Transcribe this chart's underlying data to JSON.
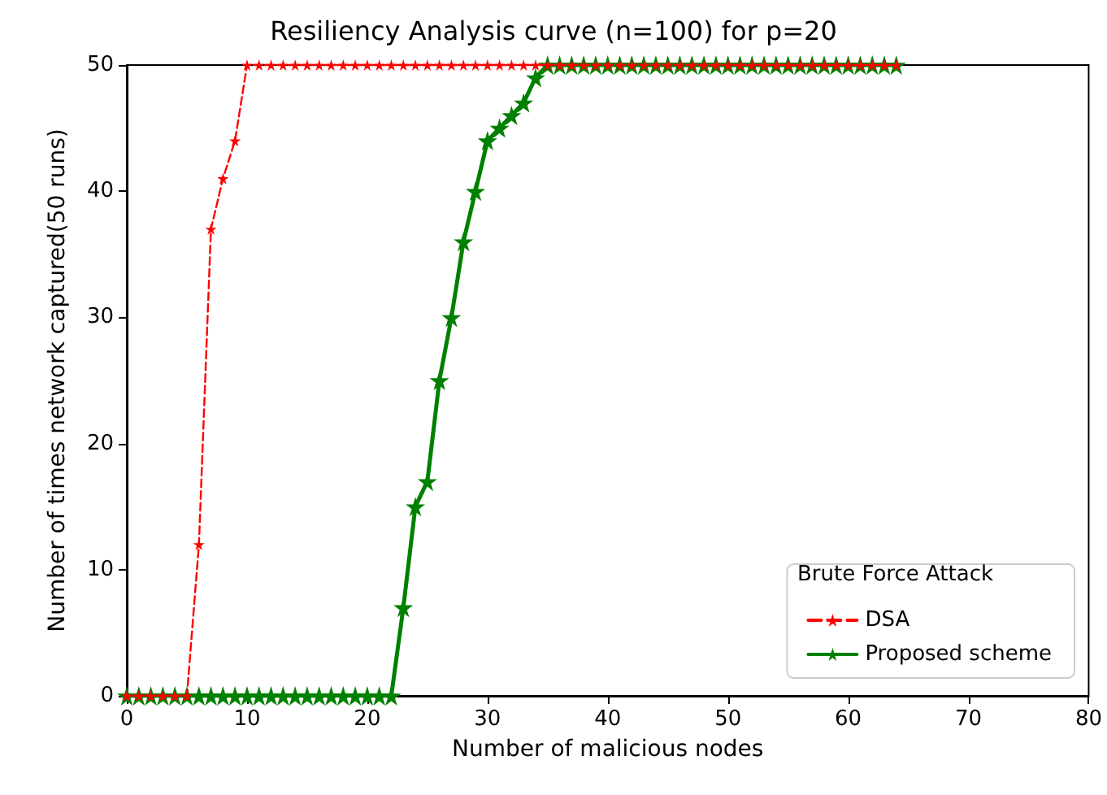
{
  "chart_data": {
    "type": "line",
    "title": "Resiliency Analysis curve (n=100) for p=20",
    "xlabel": "Number of malicious nodes",
    "ylabel": "Number of times network captured(50 runs)",
    "legend_title": "Brute Force Attack",
    "x": [
      0,
      1,
      2,
      3,
      4,
      5,
      6,
      7,
      8,
      9,
      10,
      11,
      12,
      13,
      14,
      15,
      16,
      17,
      18,
      19,
      20,
      21,
      22,
      23,
      24,
      25,
      26,
      27,
      28,
      29,
      30,
      31,
      32,
      33,
      34,
      35,
      36,
      37,
      38,
      39,
      40,
      41,
      42,
      43,
      44,
      45,
      46,
      47,
      48,
      49,
      50,
      51,
      52,
      53,
      54,
      55,
      56,
      57,
      58,
      59,
      60,
      61,
      62,
      63,
      64
    ],
    "series": [
      {
        "name": "DSA",
        "color": "#ff0000",
        "line_style": "dashed",
        "values": [
          0,
          0,
          0,
          0,
          0,
          0,
          12,
          37,
          41,
          44,
          50,
          50,
          50,
          50,
          50,
          50,
          50,
          50,
          50,
          50,
          50,
          50,
          50,
          50,
          50,
          50,
          50,
          50,
          50,
          50,
          50,
          50,
          50,
          50,
          50,
          50,
          50,
          50,
          50,
          50,
          50,
          50,
          50,
          50,
          50,
          50,
          50,
          50,
          50,
          50,
          50,
          50,
          50,
          50,
          50,
          50,
          50,
          50,
          50,
          50,
          50,
          50,
          50,
          50,
          50
        ]
      },
      {
        "name": "Proposed scheme",
        "color": "#008000",
        "line_style": "solid",
        "values": [
          0,
          0,
          0,
          0,
          0,
          0,
          0,
          0,
          0,
          0,
          0,
          0,
          0,
          0,
          0,
          0,
          0,
          0,
          0,
          0,
          0,
          0,
          0,
          7,
          15,
          17,
          25,
          30,
          36,
          40,
          44,
          45,
          46,
          47,
          49,
          50,
          50,
          50,
          50,
          50,
          50,
          50,
          50,
          50,
          50,
          50,
          50,
          50,
          50,
          50,
          50,
          50,
          50,
          50,
          50,
          50,
          50,
          50,
          50,
          50,
          50,
          50,
          50,
          50,
          50
        ]
      }
    ],
    "xlim": [
      0,
      80
    ],
    "xticks": [
      0,
      10,
      20,
      30,
      40,
      50,
      60,
      70,
      80
    ],
    "ylim": [
      0,
      50
    ],
    "yticks": [
      0,
      10,
      20,
      30,
      40,
      50
    ],
    "grid": false,
    "legend": "bottom right",
    "marker": "star"
  }
}
